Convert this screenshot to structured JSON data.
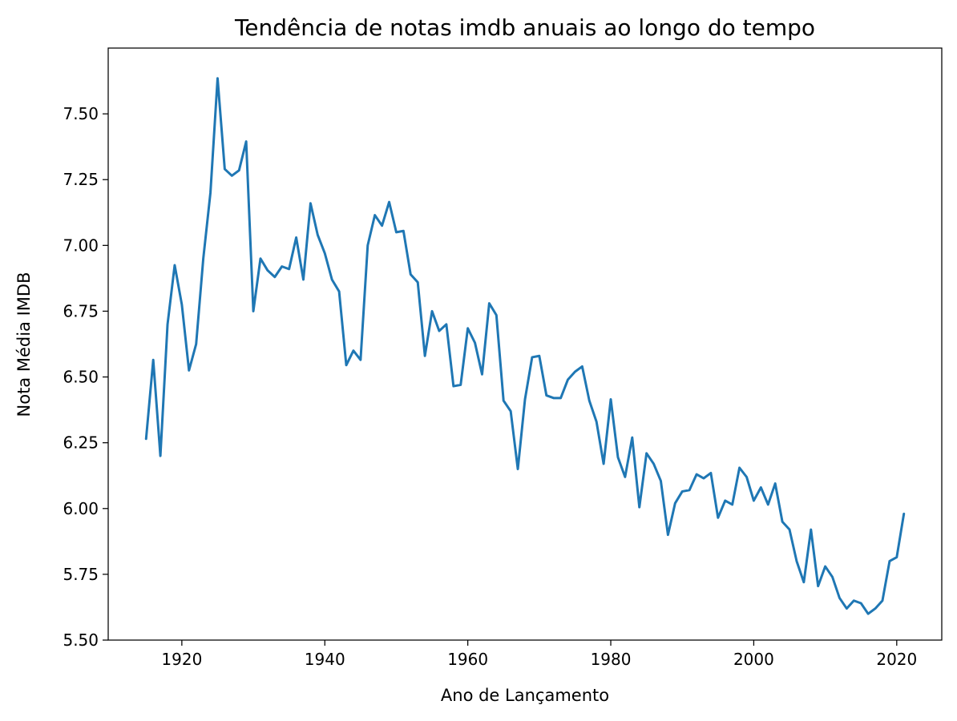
{
  "chart_data": {
    "type": "line",
    "title": "Tendência de notas imdb anuais ao longo do tempo",
    "xlabel": "Ano de Lançamento",
    "ylabel": "Nota Média IMDB",
    "xlim": [
      1909.7,
      2026.3
    ],
    "ylim": [
      5.5,
      7.75
    ],
    "x_ticks": [
      1920,
      1940,
      1960,
      1980,
      2000,
      2020
    ],
    "y_ticks": [
      5.5,
      5.75,
      6.0,
      6.25,
      6.5,
      6.75,
      7.0,
      7.25,
      7.5
    ],
    "y_tick_labels": [
      "5.50",
      "5.75",
      "6.00",
      "6.25",
      "6.50",
      "6.75",
      "7.00",
      "7.25",
      "7.50"
    ],
    "x_tick_labels": [
      "1920",
      "1940",
      "1960",
      "1980",
      "2000",
      "2020"
    ],
    "grid": false,
    "colors": {
      "series": "#1f77b4"
    },
    "x": [
      1915,
      1916,
      1917,
      1918,
      1919,
      1920,
      1921,
      1922,
      1923,
      1924,
      1925,
      1926,
      1927,
      1928,
      1929,
      1930,
      1931,
      1932,
      1933,
      1934,
      1935,
      1936,
      1937,
      1938,
      1939,
      1940,
      1941,
      1942,
      1943,
      1944,
      1945,
      1946,
      1947,
      1948,
      1949,
      1950,
      1951,
      1952,
      1953,
      1954,
      1955,
      1956,
      1957,
      1958,
      1959,
      1960,
      1961,
      1962,
      1963,
      1964,
      1965,
      1966,
      1967,
      1968,
      1969,
      1970,
      1971,
      1972,
      1973,
      1974,
      1975,
      1976,
      1977,
      1978,
      1979,
      1980,
      1981,
      1982,
      1983,
      1984,
      1985,
      1986,
      1987,
      1988,
      1989,
      1990,
      1991,
      1992,
      1993,
      1994,
      1995,
      1996,
      1997,
      1998,
      1999,
      2000,
      2001,
      2002,
      2003,
      2004,
      2005,
      2006,
      2007,
      2008,
      2009,
      2010,
      2011,
      2012,
      2013,
      2014,
      2015,
      2016,
      2017,
      2018,
      2019,
      2020,
      2021
    ],
    "series": [
      {
        "values": [
          6.265,
          6.565,
          6.2,
          6.7,
          6.925,
          6.775,
          6.525,
          6.625,
          6.95,
          7.2,
          7.635,
          7.29,
          7.265,
          7.285,
          7.395,
          6.75,
          6.95,
          6.905,
          6.88,
          6.92,
          6.91,
          7.03,
          6.87,
          7.16,
          7.04,
          6.97,
          6.87,
          6.825,
          6.545,
          6.6,
          6.565,
          7.0,
          7.115,
          7.075,
          7.165,
          7.05,
          7.055,
          6.89,
          6.86,
          6.58,
          6.75,
          6.675,
          6.7,
          6.465,
          6.47,
          6.685,
          6.63,
          6.51,
          6.78,
          6.735,
          6.41,
          6.37,
          6.15,
          6.415,
          6.575,
          6.58,
          6.43,
          6.42,
          6.42,
          6.49,
          6.52,
          6.54,
          6.41,
          6.33,
          6.17,
          6.415,
          6.195,
          6.12,
          6.27,
          6.005,
          6.21,
          6.17,
          6.105,
          5.9,
          6.02,
          6.065,
          6.07,
          6.13,
          6.115,
          6.135,
          5.965,
          6.03,
          6.015,
          6.155,
          6.12,
          6.03,
          6.08,
          6.015,
          6.095,
          5.95,
          5.92,
          5.8,
          5.72,
          5.92,
          5.705,
          5.78,
          5.74,
          5.66,
          5.62,
          5.65,
          5.64,
          5.6,
          5.62,
          5.65,
          5.8,
          5.815,
          5.98
        ]
      }
    ]
  }
}
